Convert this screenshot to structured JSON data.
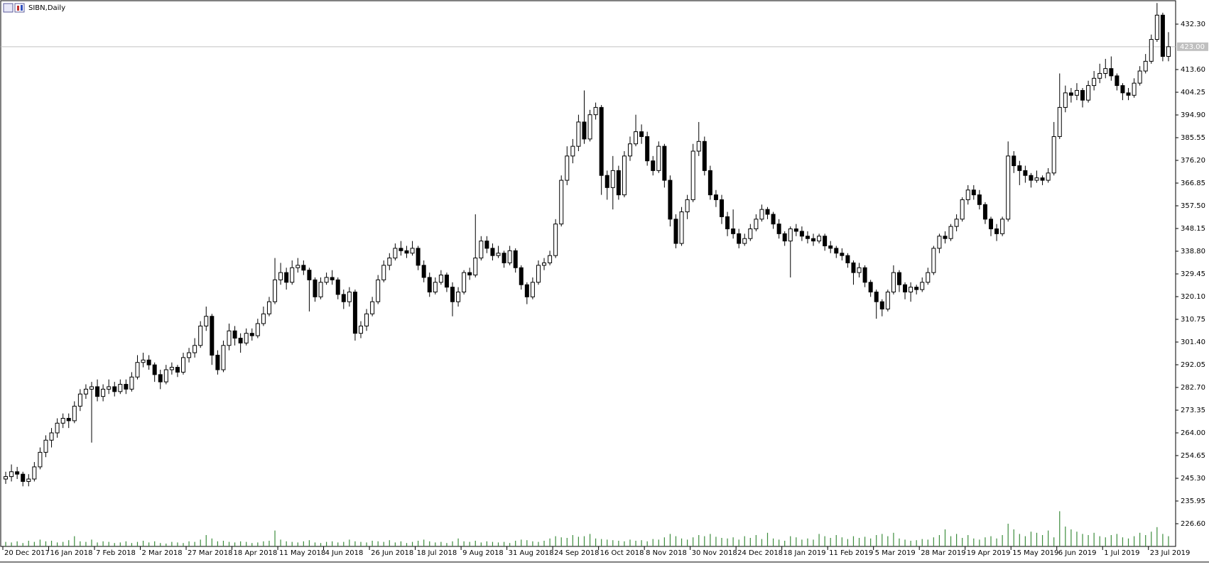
{
  "chart_data": {
    "type": "candlestick",
    "title": "SIBN,Daily",
    "ylim": [
      217.25,
      441.65
    ],
    "yticks": [
      {
        "value": 226.6,
        "label": "226.60"
      },
      {
        "value": 235.95,
        "label": "235.95"
      },
      {
        "value": 245.3,
        "label": "245.30"
      },
      {
        "value": 254.65,
        "label": "254.65"
      },
      {
        "value": 264,
        "label": "264.00"
      },
      {
        "value": 273.35,
        "label": "273.35"
      },
      {
        "value": 282.7,
        "label": "282.70"
      },
      {
        "value": 292.05,
        "label": "292.05"
      },
      {
        "value": 301.4,
        "label": "301.40"
      },
      {
        "value": 310.75,
        "label": "310.75"
      },
      {
        "value": 320.1,
        "label": "320.10"
      },
      {
        "value": 329.45,
        "label": "329.45"
      },
      {
        "value": 338.8,
        "label": "338.80"
      },
      {
        "value": 348.15,
        "label": "348.15"
      },
      {
        "value": 357.5,
        "label": "357.50"
      },
      {
        "value": 366.85,
        "label": "366.85"
      },
      {
        "value": 376.2,
        "label": "376.20"
      },
      {
        "value": 385.55,
        "label": "385.55"
      },
      {
        "value": 394.9,
        "label": "394.90"
      },
      {
        "value": 404.25,
        "label": "404.25"
      },
      {
        "value": 413.6,
        "label": "413.60"
      },
      {
        "value": 432.3,
        "label": "432.30"
      }
    ],
    "xticks": [
      {
        "value": 0,
        "label": "20 Dec 2017"
      },
      {
        "value": 8,
        "label": "16 Jan 2018"
      },
      {
        "value": 16,
        "label": "7 Feb 2018"
      },
      {
        "value": 24,
        "label": "2 Mar 2018"
      },
      {
        "value": 32,
        "label": "27 Mar 2018"
      },
      {
        "value": 40,
        "label": "18 Apr 2018"
      },
      {
        "value": 48,
        "label": "11 May 2018"
      },
      {
        "value": 56,
        "label": "4 Jun 2018"
      },
      {
        "value": 64,
        "label": "26 Jun 2018"
      },
      {
        "value": 72,
        "label": "18 Jul 2018"
      },
      {
        "value": 80,
        "label": "9 Aug 2018"
      },
      {
        "value": 88,
        "label": "31 Aug 2018"
      },
      {
        "value": 96,
        "label": "24 Sep 2018"
      },
      {
        "value": 104,
        "label": "16 Oct 2018"
      },
      {
        "value": 112,
        "label": "8 Nov 2018"
      },
      {
        "value": 120,
        "label": "30 Nov 2018"
      },
      {
        "value": 128,
        "label": "24 Dec 2018"
      },
      {
        "value": 136,
        "label": "18 Jan 2019"
      },
      {
        "value": 144,
        "label": "11 Feb 2019"
      },
      {
        "value": 152,
        "label": "5 Mar 2019"
      },
      {
        "value": 160,
        "label": "28 Mar 2019"
      },
      {
        "value": 168,
        "label": "19 Apr 2019"
      },
      {
        "value": 176,
        "label": "15 May 2019"
      },
      {
        "value": 184,
        "label": "6 Jun 2019"
      },
      {
        "value": 192,
        "label": "1 Jul 2019"
      },
      {
        "value": 200,
        "label": "23 Jul 2019"
      }
    ],
    "last_price": {
      "value": 423,
      "label": "423.00"
    },
    "up_color": "#ffffff",
    "down_color": "#000000",
    "volume_color": "#3c8c3c",
    "vlim": [
      0,
      100
    ],
    "ohlc": [
      [
        245,
        248,
        243,
        246
      ],
      [
        246,
        251,
        244,
        248
      ],
      [
        248,
        250,
        245,
        247
      ],
      [
        247,
        248,
        242,
        244
      ],
      [
        244,
        247,
        242,
        245
      ],
      [
        245,
        252,
        244,
        250
      ],
      [
        250,
        258,
        249,
        256
      ],
      [
        256,
        263,
        254,
        261
      ],
      [
        261,
        266,
        258,
        264
      ],
      [
        264,
        270,
        262,
        268
      ],
      [
        268,
        272,
        266,
        270
      ],
      [
        270,
        272,
        266,
        269
      ],
      [
        269,
        277,
        268,
        275
      ],
      [
        275,
        282,
        273,
        280
      ],
      [
        280,
        284,
        278,
        282
      ],
      [
        282,
        285,
        260,
        283
      ],
      [
        283,
        286,
        277,
        279
      ],
      [
        279,
        284,
        277,
        282
      ],
      [
        282,
        286,
        280,
        283
      ],
      [
        283,
        285,
        279,
        281
      ],
      [
        281,
        286,
        280,
        284
      ],
      [
        284,
        286,
        280,
        282
      ],
      [
        282,
        289,
        281,
        287
      ],
      [
        287,
        296,
        286,
        293
      ],
      [
        293,
        297,
        291,
        294
      ],
      [
        294,
        296,
        290,
        292
      ],
      [
        292,
        293,
        285,
        288
      ],
      [
        288,
        290,
        282,
        285
      ],
      [
        285,
        292,
        284,
        290
      ],
      [
        290,
        293,
        288,
        291
      ],
      [
        291,
        292,
        287,
        289
      ],
      [
        289,
        297,
        288,
        295
      ],
      [
        295,
        299,
        293,
        297
      ],
      [
        297,
        303,
        295,
        300
      ],
      [
        300,
        310,
        299,
        308
      ],
      [
        308,
        316,
        306,
        312
      ],
      [
        312,
        313,
        292,
        296
      ],
      [
        296,
        298,
        288,
        290
      ],
      [
        290,
        302,
        289,
        300
      ],
      [
        300,
        309,
        298,
        306
      ],
      [
        306,
        308,
        300,
        303
      ],
      [
        303,
        305,
        297,
        301
      ],
      [
        301,
        307,
        300,
        305
      ],
      [
        305,
        307,
        302,
        304
      ],
      [
        304,
        311,
        303,
        309
      ],
      [
        309,
        316,
        308,
        313
      ],
      [
        313,
        320,
        312,
        318
      ],
      [
        318,
        336,
        317,
        327
      ],
      [
        327,
        334,
        325,
        330
      ],
      [
        330,
        332,
        323,
        326
      ],
      [
        326,
        335,
        325,
        332
      ],
      [
        332,
        336,
        330,
        333
      ],
      [
        333,
        335,
        329,
        331
      ],
      [
        331,
        332,
        314,
        327
      ],
      [
        327,
        328,
        318,
        320
      ],
      [
        320,
        328,
        319,
        326
      ],
      [
        326,
        330,
        325,
        328
      ],
      [
        328,
        331,
        325,
        327
      ],
      [
        327,
        328,
        319,
        321
      ],
      [
        321,
        323,
        315,
        318
      ],
      [
        318,
        324,
        316,
        322
      ],
      [
        322,
        323,
        302,
        305
      ],
      [
        305,
        310,
        303,
        308
      ],
      [
        308,
        315,
        306,
        313
      ],
      [
        313,
        320,
        312,
        318
      ],
      [
        318,
        329,
        317,
        327
      ],
      [
        327,
        335,
        326,
        333
      ],
      [
        333,
        338,
        331,
        336
      ],
      [
        336,
        342,
        335,
        340
      ],
      [
        340,
        343,
        337,
        339
      ],
      [
        339,
        341,
        336,
        338
      ],
      [
        338,
        343,
        337,
        340
      ],
      [
        340,
        341,
        331,
        333
      ],
      [
        333,
        335,
        326,
        328
      ],
      [
        328,
        330,
        320,
        322
      ],
      [
        322,
        328,
        321,
        326
      ],
      [
        326,
        331,
        325,
        329
      ],
      [
        329,
        330,
        322,
        324
      ],
      [
        324,
        326,
        312,
        318
      ],
      [
        318,
        324,
        316,
        322
      ],
      [
        322,
        331,
        321,
        330
      ],
      [
        330,
        332,
        327,
        329
      ],
      [
        329,
        354,
        328,
        336
      ],
      [
        336,
        345,
        335,
        343
      ],
      [
        343,
        345,
        338,
        340
      ],
      [
        340,
        342,
        335,
        337
      ],
      [
        337,
        341,
        336,
        338
      ],
      [
        338,
        339,
        332,
        334
      ],
      [
        334,
        341,
        333,
        339
      ],
      [
        339,
        340,
        330,
        332
      ],
      [
        332,
        333,
        323,
        325
      ],
      [
        325,
        326,
        317,
        320
      ],
      [
        320,
        328,
        319,
        326
      ],
      [
        326,
        335,
        325,
        333
      ],
      [
        333,
        336,
        331,
        334
      ],
      [
        334,
        339,
        333,
        337
      ],
      [
        337,
        352,
        336,
        350
      ],
      [
        350,
        370,
        349,
        368
      ],
      [
        368,
        382,
        366,
        378
      ],
      [
        378,
        385,
        375,
        382
      ],
      [
        382,
        395,
        380,
        392
      ],
      [
        392,
        405,
        383,
        385
      ],
      [
        385,
        397,
        384,
        395
      ],
      [
        395,
        400,
        393,
        398
      ],
      [
        398,
        399,
        362,
        370
      ],
      [
        370,
        372,
        360,
        365
      ],
      [
        365,
        378,
        356,
        372
      ],
      [
        372,
        374,
        360,
        362
      ],
      [
        362,
        380,
        361,
        378
      ],
      [
        378,
        386,
        376,
        383
      ],
      [
        383,
        395,
        382,
        388
      ],
      [
        388,
        391,
        383,
        386
      ],
      [
        386,
        388,
        374,
        376
      ],
      [
        376,
        378,
        370,
        372
      ],
      [
        372,
        384,
        371,
        382
      ],
      [
        382,
        383,
        365,
        368
      ],
      [
        368,
        370,
        349,
        352
      ],
      [
        352,
        354,
        340,
        342
      ],
      [
        342,
        357,
        341,
        355
      ],
      [
        355,
        362,
        352,
        360
      ],
      [
        360,
        383,
        359,
        380
      ],
      [
        380,
        392,
        378,
        384
      ],
      [
        384,
        386,
        370,
        372
      ],
      [
        372,
        374,
        360,
        362
      ],
      [
        362,
        364,
        357,
        360
      ],
      [
        360,
        362,
        350,
        353
      ],
      [
        353,
        355,
        345,
        348
      ],
      [
        348,
        356,
        344,
        346
      ],
      [
        346,
        348,
        340,
        342
      ],
      [
        342,
        346,
        341,
        344
      ],
      [
        344,
        350,
        343,
        348
      ],
      [
        348,
        354,
        347,
        352
      ],
      [
        352,
        358,
        351,
        356
      ],
      [
        356,
        357,
        352,
        354
      ],
      [
        354,
        355,
        348,
        350
      ],
      [
        350,
        352,
        344,
        346
      ],
      [
        346,
        347,
        341,
        343
      ],
      [
        343,
        349,
        328,
        348
      ],
      [
        348,
        350,
        345,
        347
      ],
      [
        347,
        349,
        343,
        345
      ],
      [
        345,
        347,
        342,
        344
      ],
      [
        344,
        346,
        341,
        343
      ],
      [
        343,
        346,
        342,
        345
      ],
      [
        345,
        346,
        339,
        341
      ],
      [
        341,
        343,
        338,
        340
      ],
      [
        340,
        341,
        336,
        338
      ],
      [
        338,
        340,
        335,
        337
      ],
      [
        337,
        338,
        332,
        334
      ],
      [
        334,
        335,
        325,
        330
      ],
      [
        330,
        334,
        328,
        332
      ],
      [
        332,
        333,
        324,
        326
      ],
      [
        326,
        327,
        320,
        322
      ],
      [
        322,
        323,
        311,
        318
      ],
      [
        318,
        319,
        312,
        315
      ],
      [
        315,
        323,
        314,
        322
      ],
      [
        322,
        333,
        321,
        330
      ],
      [
        330,
        331,
        322,
        325
      ],
      [
        325,
        326,
        319,
        322
      ],
      [
        322,
        326,
        318,
        324
      ],
      [
        324,
        325,
        321,
        323
      ],
      [
        323,
        328,
        322,
        326
      ],
      [
        326,
        332,
        325,
        330
      ],
      [
        330,
        341,
        329,
        340
      ],
      [
        340,
        346,
        338,
        345
      ],
      [
        345,
        347,
        342,
        344
      ],
      [
        344,
        350,
        343,
        349
      ],
      [
        349,
        354,
        347,
        352
      ],
      [
        352,
        361,
        351,
        360
      ],
      [
        360,
        366,
        358,
        364
      ],
      [
        364,
        366,
        360,
        362
      ],
      [
        362,
        364,
        356,
        358
      ],
      [
        358,
        359,
        350,
        352
      ],
      [
        352,
        353,
        345,
        348
      ],
      [
        348,
        350,
        343,
        346
      ],
      [
        346,
        353,
        345,
        352
      ],
      [
        352,
        384,
        351,
        378
      ],
      [
        378,
        380,
        371,
        374
      ],
      [
        374,
        376,
        366,
        372
      ],
      [
        372,
        374,
        367,
        370
      ],
      [
        370,
        371,
        365,
        368
      ],
      [
        368,
        372,
        367,
        369
      ],
      [
        369,
        370,
        366,
        368
      ],
      [
        368,
        373,
        367,
        371
      ],
      [
        371,
        392,
        370,
        386
      ],
      [
        386,
        412,
        385,
        398
      ],
      [
        398,
        407,
        396,
        404
      ],
      [
        404,
        406,
        400,
        403
      ],
      [
        403,
        408,
        401,
        405
      ],
      [
        405,
        406,
        398,
        401
      ],
      [
        401,
        409,
        400,
        407
      ],
      [
        407,
        413,
        405,
        410
      ],
      [
        410,
        416,
        408,
        412
      ],
      [
        412,
        418,
        410,
        414
      ],
      [
        414,
        419,
        409,
        411
      ],
      [
        411,
        412,
        405,
        407
      ],
      [
        407,
        408,
        401,
        404
      ],
      [
        404,
        406,
        401,
        403
      ],
      [
        403,
        410,
        402,
        408
      ],
      [
        408,
        415,
        407,
        413
      ],
      [
        413,
        420,
        412,
        417
      ],
      [
        417,
        428,
        416,
        426
      ],
      [
        426,
        441,
        425,
        436
      ],
      [
        436,
        437,
        417,
        419
      ],
      [
        419,
        429,
        417,
        423
      ]
    ],
    "volume": [
      8,
      7,
      9,
      6,
      10,
      8,
      12,
      9,
      10,
      7,
      8,
      11,
      18,
      9,
      8,
      12,
      7,
      9,
      8,
      6,
      7,
      9,
      6,
      8,
      10,
      7,
      9,
      6,
      5,
      8,
      7,
      6,
      9,
      8,
      12,
      20,
      14,
      9,
      10,
      8,
      7,
      9,
      8,
      6,
      7,
      9,
      10,
      28,
      12,
      9,
      8,
      7,
      9,
      11,
      7,
      6,
      8,
      9,
      7,
      8,
      12,
      9,
      8,
      7,
      10,
      9,
      8,
      11,
      7,
      9,
      6,
      8,
      10,
      12,
      9,
      7,
      8,
      6,
      9,
      14,
      9,
      8,
      10,
      7,
      9,
      8,
      7,
      8,
      6,
      10,
      12,
      11,
      9,
      8,
      10,
      14,
      18,
      16,
      15,
      20,
      17,
      18,
      22,
      14,
      13,
      12,
      11,
      10,
      9,
      12,
      10,
      11,
      9,
      13,
      12,
      16,
      22,
      18,
      14,
      12,
      16,
      20,
      18,
      22,
      17,
      15,
      14,
      16,
      12,
      18,
      15,
      20,
      13,
      24,
      14,
      12,
      10,
      18,
      16,
      12,
      14,
      12,
      22,
      18,
      15,
      20,
      16,
      13,
      18,
      15,
      17,
      14,
      20,
      22,
      18,
      24,
      14,
      12,
      10,
      11,
      13,
      12,
      16,
      20,
      30,
      18,
      22,
      15,
      20,
      14,
      12,
      16,
      18,
      14,
      20,
      40,
      30,
      22,
      18,
      26,
      24,
      20,
      28,
      16,
      62,
      35,
      30,
      26,
      22,
      20,
      24,
      18,
      16,
      20,
      22,
      16,
      14,
      18,
      24,
      20,
      26,
      34,
      22,
      18
    ]
  }
}
